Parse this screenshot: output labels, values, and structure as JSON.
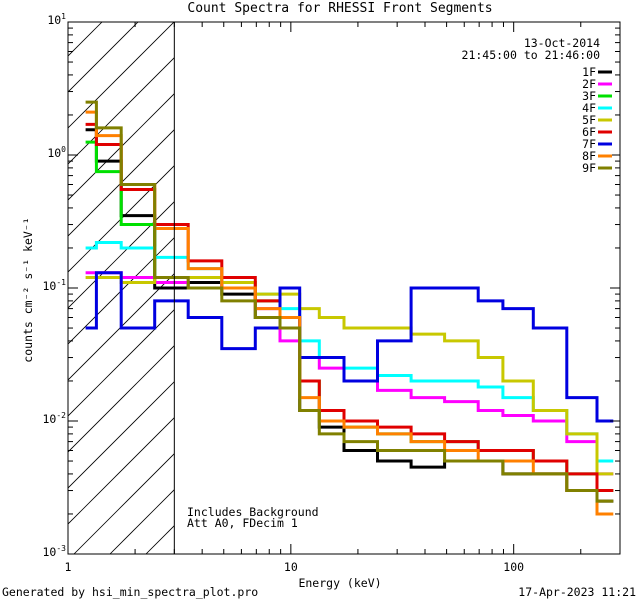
{
  "chart_data": {
    "type": "line",
    "title": "Count Spectra for RHESSI Front Segments",
    "xlabel": "Energy (keV)",
    "ylabel": "counts cm⁻² s⁻¹ keV⁻¹",
    "x_scale": "log",
    "y_scale": "log",
    "xlim": [
      1,
      300
    ],
    "ylim": [
      0.001,
      10
    ],
    "xticks": [
      {
        "value": 1,
        "label": "1"
      },
      {
        "value": 10,
        "label": "10"
      },
      {
        "value": 100,
        "label": "100"
      }
    ],
    "yticks": [
      {
        "value": 0.001,
        "base": "10",
        "exp": "-3"
      },
      {
        "value": 0.01,
        "base": "10",
        "exp": "-2"
      },
      {
        "value": 0.1,
        "base": "10",
        "exp": "-1"
      },
      {
        "value": 1,
        "base": "10",
        "exp": "0"
      },
      {
        "value": 10,
        "base": "10",
        "exp": "1"
      }
    ],
    "date": "13-Oct-2014",
    "time_range": "21:45:00 to 21:46:00",
    "annotations": [
      "Includes Background",
      "Att A0, FDecim 1"
    ],
    "shaded_region_max_energy": 3,
    "series": [
      {
        "name": "1F",
        "color": "#000000",
        "energies": [
          1.2,
          1.5,
          2,
          3,
          4,
          6,
          8,
          10,
          12,
          15,
          20,
          30,
          40,
          60,
          80,
          100,
          150,
          200,
          280
        ],
        "values": [
          1.55,
          0.9,
          0.35,
          0.1,
          0.11,
          0.09,
          0.06,
          0.06,
          0.012,
          0.009,
          0.006,
          0.005,
          0.0045,
          0.005,
          0.005,
          0.004,
          0.004,
          0.003,
          0.0025
        ]
      },
      {
        "name": "2F",
        "color": "#ff00ff",
        "energies": [
          1.2,
          1.5,
          2,
          3,
          4,
          6,
          8,
          10,
          12,
          15,
          20,
          30,
          40,
          60,
          80,
          100,
          150,
          200,
          280
        ],
        "values": [
          0.13,
          0.13,
          0.12,
          0.11,
          0.12,
          0.1,
          0.07,
          0.04,
          0.03,
          0.025,
          0.02,
          0.017,
          0.015,
          0.014,
          0.012,
          0.011,
          0.01,
          0.007,
          0.004
        ]
      },
      {
        "name": "3F",
        "color": "#00e000",
        "energies": [
          1.2,
          1.5,
          2,
          3,
          4,
          6,
          8,
          10,
          12,
          15,
          20,
          30,
          40,
          60,
          80,
          100,
          150,
          200,
          280
        ],
        "values": [
          1.25,
          0.75,
          0.3,
          0.12,
          0.12,
          0.11,
          0.08,
          0.05,
          0.02,
          0.01,
          0.009,
          0.008,
          0.007,
          0.007,
          0.006,
          0.006,
          0.005,
          0.004,
          0.003
        ]
      },
      {
        "name": "4F",
        "color": "#00ffff",
        "energies": [
          1.2,
          1.5,
          2,
          3,
          4,
          6,
          8,
          10,
          12,
          15,
          20,
          30,
          40,
          60,
          80,
          100,
          150,
          200,
          280
        ],
        "values": [
          0.2,
          0.22,
          0.2,
          0.17,
          0.14,
          0.11,
          0.09,
          0.07,
          0.04,
          0.03,
          0.025,
          0.022,
          0.02,
          0.02,
          0.018,
          0.015,
          0.012,
          0.008,
          0.005
        ]
      },
      {
        "name": "5F",
        "color": "#c8c800",
        "energies": [
          1.2,
          1.5,
          2,
          3,
          4,
          6,
          8,
          10,
          12,
          15,
          20,
          30,
          40,
          60,
          80,
          100,
          150,
          200,
          280
        ],
        "values": [
          0.12,
          0.12,
          0.11,
          0.12,
          0.12,
          0.11,
          0.09,
          0.09,
          0.07,
          0.06,
          0.05,
          0.05,
          0.045,
          0.04,
          0.03,
          0.02,
          0.012,
          0.008,
          0.004
        ]
      },
      {
        "name": "6F",
        "color": "#e00000",
        "energies": [
          1.2,
          1.5,
          2,
          3,
          4,
          6,
          8,
          10,
          12,
          15,
          20,
          30,
          40,
          60,
          80,
          100,
          150,
          200,
          280
        ],
        "values": [
          1.7,
          1.2,
          0.55,
          0.3,
          0.16,
          0.12,
          0.08,
          0.06,
          0.02,
          0.012,
          0.01,
          0.009,
          0.008,
          0.007,
          0.006,
          0.006,
          0.005,
          0.004,
          0.003
        ]
      },
      {
        "name": "7F",
        "color": "#0000e0",
        "energies": [
          1.2,
          1.5,
          2,
          3,
          4,
          6,
          8,
          10,
          12,
          15,
          20,
          30,
          40,
          60,
          80,
          100,
          150,
          200,
          280
        ],
        "values": [
          0.05,
          0.13,
          0.05,
          0.08,
          0.06,
          0.035,
          0.05,
          0.1,
          0.03,
          0.03,
          0.02,
          0.04,
          0.1,
          0.1,
          0.08,
          0.07,
          0.05,
          0.015,
          0.01
        ]
      },
      {
        "name": "8F",
        "color": "#ff8000",
        "energies": [
          1.2,
          1.5,
          2,
          3,
          4,
          6,
          8,
          10,
          12,
          15,
          20,
          30,
          40,
          60,
          80,
          100,
          150,
          200,
          280
        ],
        "values": [
          2.1,
          1.4,
          0.6,
          0.28,
          0.14,
          0.1,
          0.07,
          0.06,
          0.015,
          0.01,
          0.009,
          0.008,
          0.007,
          0.006,
          0.005,
          0.005,
          0.004,
          0.003,
          0.002
        ]
      },
      {
        "name": "9F",
        "color": "#808000",
        "energies": [
          1.2,
          1.5,
          2,
          3,
          4,
          6,
          8,
          10,
          12,
          15,
          20,
          30,
          40,
          60,
          80,
          100,
          150,
          200,
          280
        ],
        "values": [
          2.5,
          1.6,
          0.6,
          0.12,
          0.1,
          0.08,
          0.06,
          0.05,
          0.012,
          0.008,
          0.007,
          0.006,
          0.006,
          0.005,
          0.005,
          0.004,
          0.004,
          0.003,
          0.0025
        ]
      }
    ]
  },
  "footer": {
    "generated_by": "Generated by hsi_min_spectra_plot.pro",
    "timestamp": "17-Apr-2023 11:21"
  }
}
